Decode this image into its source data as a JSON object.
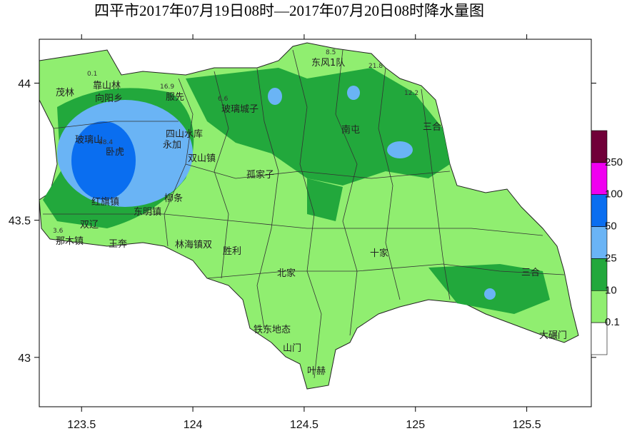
{
  "map": {
    "title": "四平市2017年07月19日08时—2017年07月20日08时降水量图",
    "xlim": [
      123.31,
      125.79
    ],
    "ylim": [
      42.82,
      44.16
    ],
    "xticks": [
      123.5,
      124,
      124.5,
      125,
      125.5
    ],
    "yticks": [
      43,
      43.5,
      44
    ],
    "legend": {
      "levels": [
        250,
        100,
        50,
        25,
        10,
        0.1
      ],
      "colors": [
        "#700038",
        "#f000f0",
        "#0a6ef0",
        "#6ab4f5",
        "#22a83c",
        "#90ee70",
        "#ffffff"
      ]
    },
    "places": [
      "茂林",
      "靠山林",
      "向阳乡",
      "玻璃山",
      "卧虎",
      "四山水库",
      "永加",
      "服先",
      "红旗镇",
      "东明镇",
      "柳条",
      "双辽",
      "那木镇",
      "王奔",
      "玻璃城子",
      "双山镇",
      "孤家子",
      "林海镇双",
      "胜利",
      "东风1队",
      "南屯",
      "三合",
      "十家",
      "北家",
      "山门",
      "叶赫",
      "铁东地态",
      "大碾门",
      "三合"
    ],
    "stations": [
      0.1,
      16.9,
      88.4,
      8.5,
      21.8,
      12.2,
      6.6,
      3.6
    ]
  }
}
